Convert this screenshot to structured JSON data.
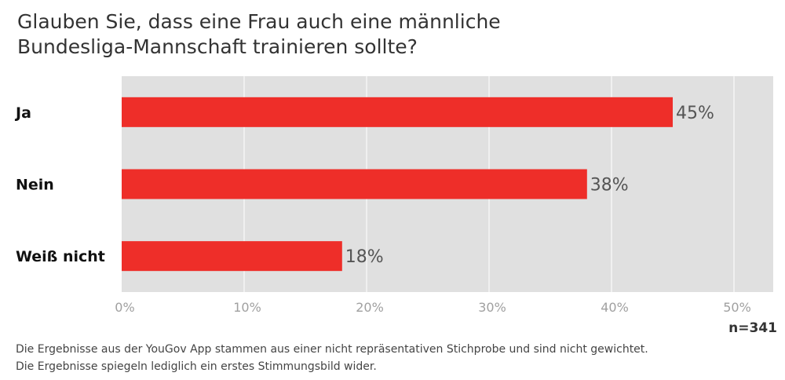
{
  "title_lines": [
    "Glauben Sie, dass eine Frau auch eine männliche",
    "Bundesliga-Mannschaft trainieren sollte?"
  ],
  "sample_size": "n=341",
  "footnote_lines": [
    "Die Ergebnisse aus der YouGov App stammen aus einer nicht repräsentativen Stichprobe und sind nicht gewichtet.",
    "Die Ergebnisse spiegeln lediglich ein erstes Stimmungsbild wider."
  ],
  "colors": {
    "bar": "#ee2e29",
    "plot_background": "#e0e0e0",
    "gridline": "#ffffff"
  },
  "chart_data": {
    "type": "bar",
    "orientation": "horizontal",
    "categories": [
      "Ja",
      "Nein",
      "Weiß nicht"
    ],
    "values": [
      45,
      38,
      18
    ],
    "value_labels": [
      "45%",
      "38%",
      "18%"
    ],
    "xlim": [
      0,
      50
    ],
    "xticks": [
      0,
      10,
      20,
      30,
      40,
      50
    ],
    "xtick_labels": [
      "0%",
      "10%",
      "20%",
      "30%",
      "40%",
      "50%"
    ],
    "grid": true
  }
}
